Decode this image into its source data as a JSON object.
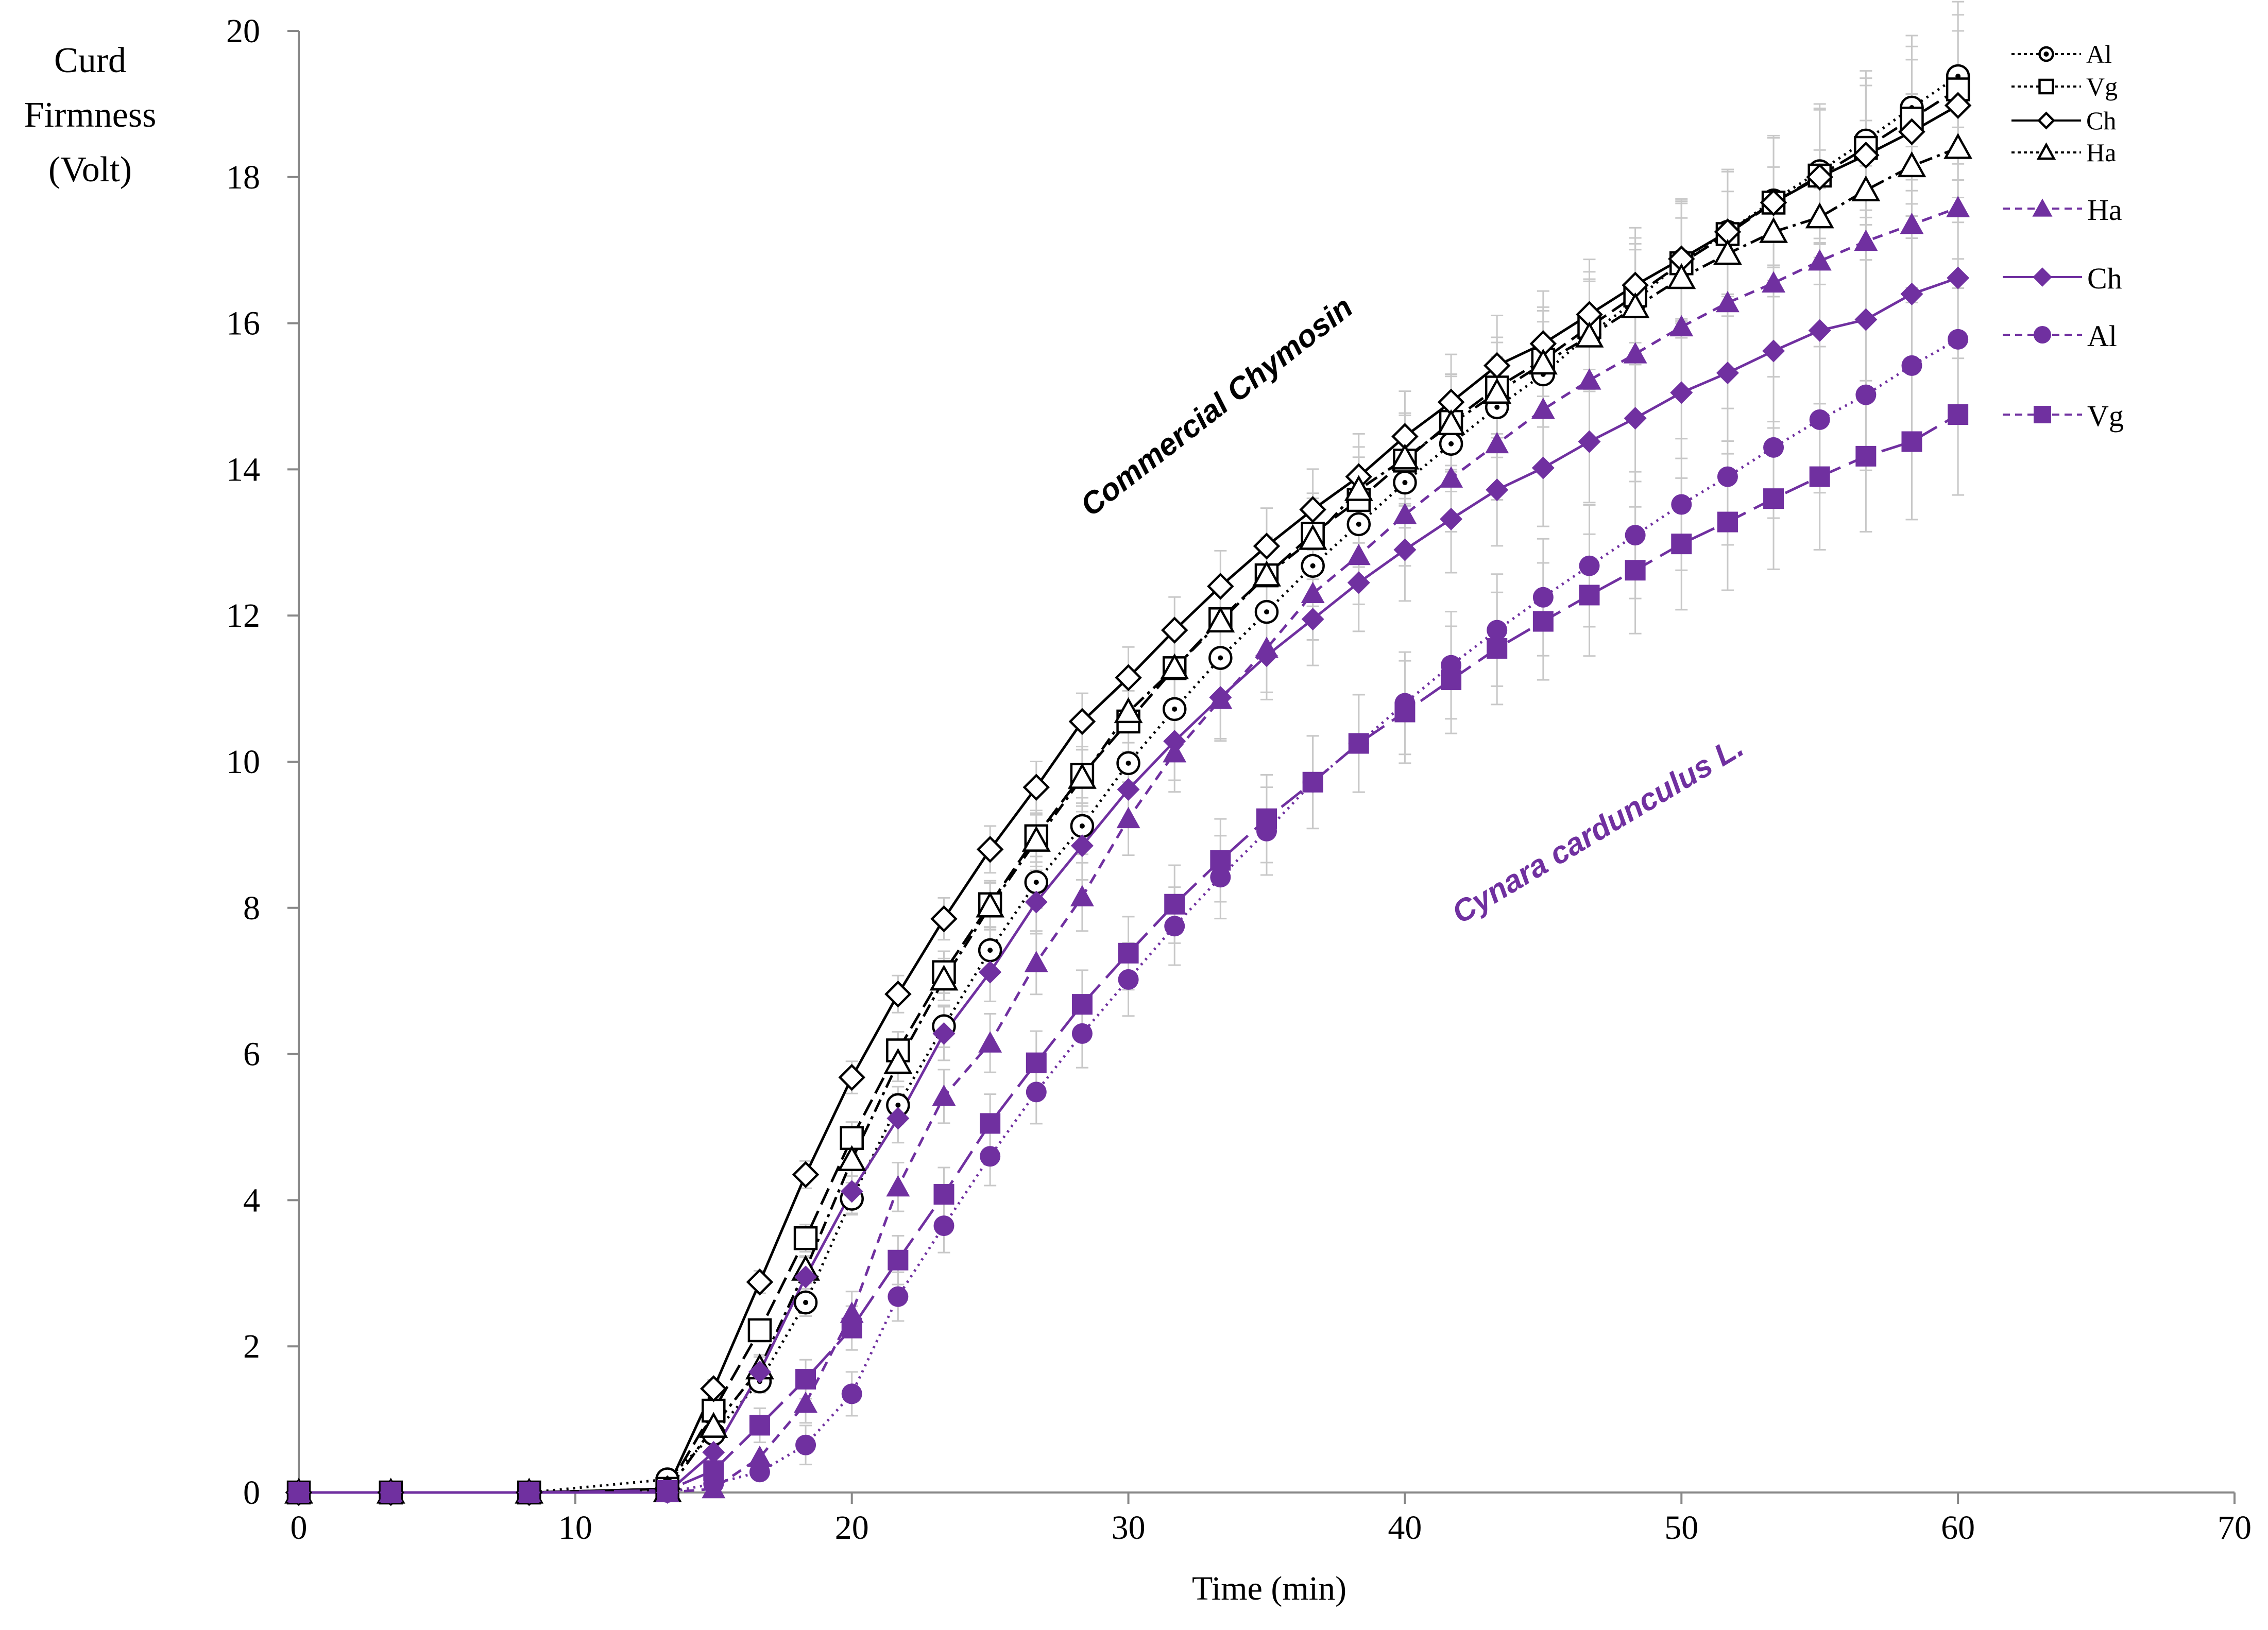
{
  "chart_data": {
    "type": "line",
    "title": "",
    "xlabel": "Time (min)",
    "ylabel": "Curd Firmness (Volt)",
    "ylabel_lines": [
      "Curd",
      "Firmness",
      "(Volt)"
    ],
    "xlim": [
      0,
      70
    ],
    "ylim": [
      0,
      20
    ],
    "xticks": [
      0,
      10,
      20,
      30,
      40,
      50,
      60,
      70
    ],
    "yticks": [
      0,
      2,
      4,
      6,
      8,
      10,
      12,
      14,
      16,
      18,
      20
    ],
    "grid": false,
    "legend_position": "top-right",
    "annotations": [
      {
        "text": "Commercial Chymosin",
        "color": "#000000"
      },
      {
        "text": "Cynara cardunculus L.",
        "color": "#7030A0"
      }
    ],
    "x": [
      0,
      3.33,
      8.33,
      13.33,
      15,
      16.67,
      18.33,
      20,
      21.67,
      23.33,
      25,
      26.67,
      28.33,
      30,
      31.67,
      33.33,
      35,
      36.67,
      38.33,
      40,
      41.67,
      43.33,
      45,
      46.67,
      48.33,
      50,
      51.67,
      53.33,
      55,
      56.67,
      58.33,
      60
    ],
    "series": [
      {
        "name": "Al",
        "group": "Commercial Chymosin",
        "color": "#000000",
        "marker": "circle-open",
        "dash": "dotted",
        "values": [
          0,
          0,
          0,
          0.18,
          0.8,
          1.52,
          2.6,
          4.02,
          5.3,
          6.38,
          7.42,
          8.35,
          9.12,
          9.98,
          10.72,
          11.42,
          12.05,
          12.68,
          13.25,
          13.82,
          14.35,
          14.85,
          15.3,
          15.85,
          16.3,
          16.85,
          17.25,
          17.68,
          18.08,
          18.5,
          18.95,
          19.38
        ]
      },
      {
        "name": "Vg",
        "group": "Commercial Chymosin",
        "color": "#000000",
        "marker": "square-open",
        "dash": "dashed",
        "values": [
          0,
          0,
          0,
          0.05,
          1.12,
          2.22,
          3.48,
          4.85,
          6.05,
          7.12,
          8.05,
          8.98,
          9.82,
          10.55,
          11.28,
          11.95,
          12.55,
          13.12,
          13.58,
          14.12,
          14.65,
          15.12,
          15.5,
          15.95,
          16.38,
          16.82,
          17.22,
          17.65,
          18.02,
          18.4,
          18.8,
          19.2
        ]
      },
      {
        "name": "Ch",
        "group": "Commercial Chymosin",
        "color": "#000000",
        "marker": "diamond-open",
        "dash": "solid",
        "values": [
          0,
          0,
          0,
          0.05,
          1.42,
          2.88,
          4.35,
          5.68,
          6.82,
          7.85,
          8.8,
          9.65,
          10.55,
          11.15,
          11.8,
          12.4,
          12.95,
          13.45,
          13.9,
          14.45,
          14.92,
          15.42,
          15.72,
          16.12,
          16.52,
          16.88,
          17.25,
          17.65,
          18.0,
          18.3,
          18.62,
          18.98
        ]
      },
      {
        "name": "Ha",
        "group": "Commercial Chymosin",
        "color": "#000000",
        "marker": "triangle-open",
        "dash": "dash-dot",
        "values": [
          0,
          0,
          0,
          0.02,
          0.9,
          1.7,
          3.05,
          4.55,
          5.88,
          7.02,
          8.02,
          8.92,
          9.78,
          10.68,
          11.28,
          11.92,
          12.55,
          13.05,
          13.72,
          14.15,
          14.62,
          15.05,
          15.45,
          15.82,
          16.22,
          16.62,
          16.95,
          17.25,
          17.45,
          17.82,
          18.15,
          18.4
        ]
      },
      {
        "name": "Ha",
        "group": "Cynara cardunculus L.",
        "color": "#7030A0",
        "marker": "triangle-filled",
        "dash": "dashed-light",
        "values": [
          0,
          0,
          0,
          0,
          0.05,
          0.48,
          1.22,
          2.45,
          4.18,
          5.42,
          6.15,
          7.25,
          8.15,
          9.22,
          10.12,
          10.85,
          11.55,
          12.3,
          12.82,
          13.38,
          13.88,
          14.35,
          14.82,
          15.22,
          15.58,
          15.95,
          16.28,
          16.55,
          16.85,
          17.12,
          17.35,
          17.58
        ]
      },
      {
        "name": "Ch",
        "group": "Cynara cardunculus L.",
        "color": "#7030A0",
        "marker": "diamond-filled",
        "dash": "solid",
        "values": [
          0,
          0,
          0,
          0,
          0.55,
          1.65,
          2.95,
          4.12,
          5.12,
          6.28,
          7.12,
          8.08,
          8.85,
          9.62,
          10.28,
          10.88,
          11.45,
          11.95,
          12.45,
          12.9,
          13.32,
          13.72,
          14.02,
          14.38,
          14.7,
          15.05,
          15.32,
          15.62,
          15.9,
          16.05,
          16.4,
          16.62
        ]
      },
      {
        "name": "Al",
        "group": "Cynara cardunculus L.",
        "color": "#7030A0",
        "marker": "circle-filled",
        "dash": "dotted",
        "values": [
          0,
          0,
          0,
          0,
          0.12,
          0.28,
          0.65,
          1.35,
          2.68,
          3.65,
          4.6,
          5.48,
          6.28,
          7.02,
          7.75,
          8.42,
          9.05,
          9.72,
          10.25,
          10.8,
          11.32,
          11.8,
          12.25,
          12.68,
          13.1,
          13.52,
          13.9,
          14.3,
          14.68,
          15.02,
          15.42,
          15.78
        ]
      },
      {
        "name": "Vg",
        "group": "Cynara cardunculus L.",
        "color": "#7030A0",
        "marker": "square-filled",
        "dash": "long-dash",
        "values": [
          0,
          0,
          0,
          0.03,
          0.3,
          0.92,
          1.55,
          2.25,
          3.18,
          4.08,
          5.05,
          5.88,
          6.68,
          7.38,
          8.05,
          8.65,
          9.22,
          9.72,
          10.25,
          10.68,
          11.12,
          11.55,
          11.92,
          12.28,
          12.62,
          12.98,
          13.28,
          13.6,
          13.9,
          14.18,
          14.38,
          14.75
        ]
      }
    ]
  }
}
